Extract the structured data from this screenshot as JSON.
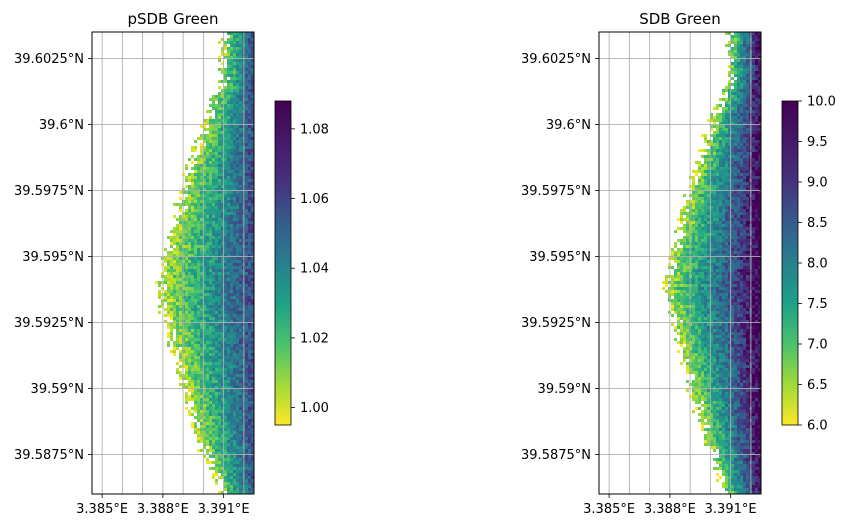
{
  "chart_data": [
    {
      "type": "heatmap",
      "title": "pSDB Green",
      "xlabel": "",
      "ylabel": "",
      "xlim": [
        3.3845,
        3.3925
      ],
      "ylim": [
        39.586,
        39.6035
      ],
      "x_ticks": [
        3.385,
        3.388,
        3.391
      ],
      "x_tick_labels": [
        "3.385°E",
        "3.388°E",
        "3.391°E"
      ],
      "y_ticks": [
        39.5875,
        39.59,
        39.5925,
        39.595,
        39.5975,
        39.6,
        39.6025
      ],
      "y_tick_labels": [
        "39.5875°N",
        "39.59°N",
        "39.5925°N",
        "39.595°N",
        "39.5975°N",
        "39.6°N",
        "39.6025°N"
      ],
      "grid": true,
      "colormap": "viridis_r",
      "colorbar": {
        "range": [
          0.995,
          1.088
        ],
        "ticks": [
          1.0,
          1.02,
          1.04,
          1.06,
          1.08
        ],
        "tick_labels": [
          "1.00",
          "1.02",
          "1.04",
          "1.06",
          "1.08"
        ]
      }
    },
    {
      "type": "heatmap",
      "title": "SDB Green",
      "xlabel": "",
      "ylabel": "",
      "xlim": [
        3.3845,
        3.3925
      ],
      "ylim": [
        39.586,
        39.6035
      ],
      "x_ticks": [
        3.385,
        3.388,
        3.391
      ],
      "x_tick_labels": [
        "3.385°E",
        "3.388°E",
        "3.391°E"
      ],
      "y_ticks": [
        39.5875,
        39.59,
        39.5925,
        39.595,
        39.5975,
        39.6,
        39.6025
      ],
      "y_tick_labels": [
        "39.5875°N",
        "39.59°N",
        "39.5925°N",
        "39.595°N",
        "39.5975°N",
        "39.6°N",
        "39.6025°N"
      ],
      "grid": true,
      "colormap": "viridis_r",
      "colorbar": {
        "range": [
          6.0,
          10.0
        ],
        "ticks": [
          6.0,
          6.5,
          7.0,
          7.5,
          8.0,
          8.5,
          9.0,
          9.5,
          10.0
        ],
        "tick_labels": [
          "6.0",
          "6.5",
          "7.0",
          "7.5",
          "8.0",
          "8.5",
          "9.0",
          "9.5",
          "10.0"
        ]
      }
    }
  ]
}
